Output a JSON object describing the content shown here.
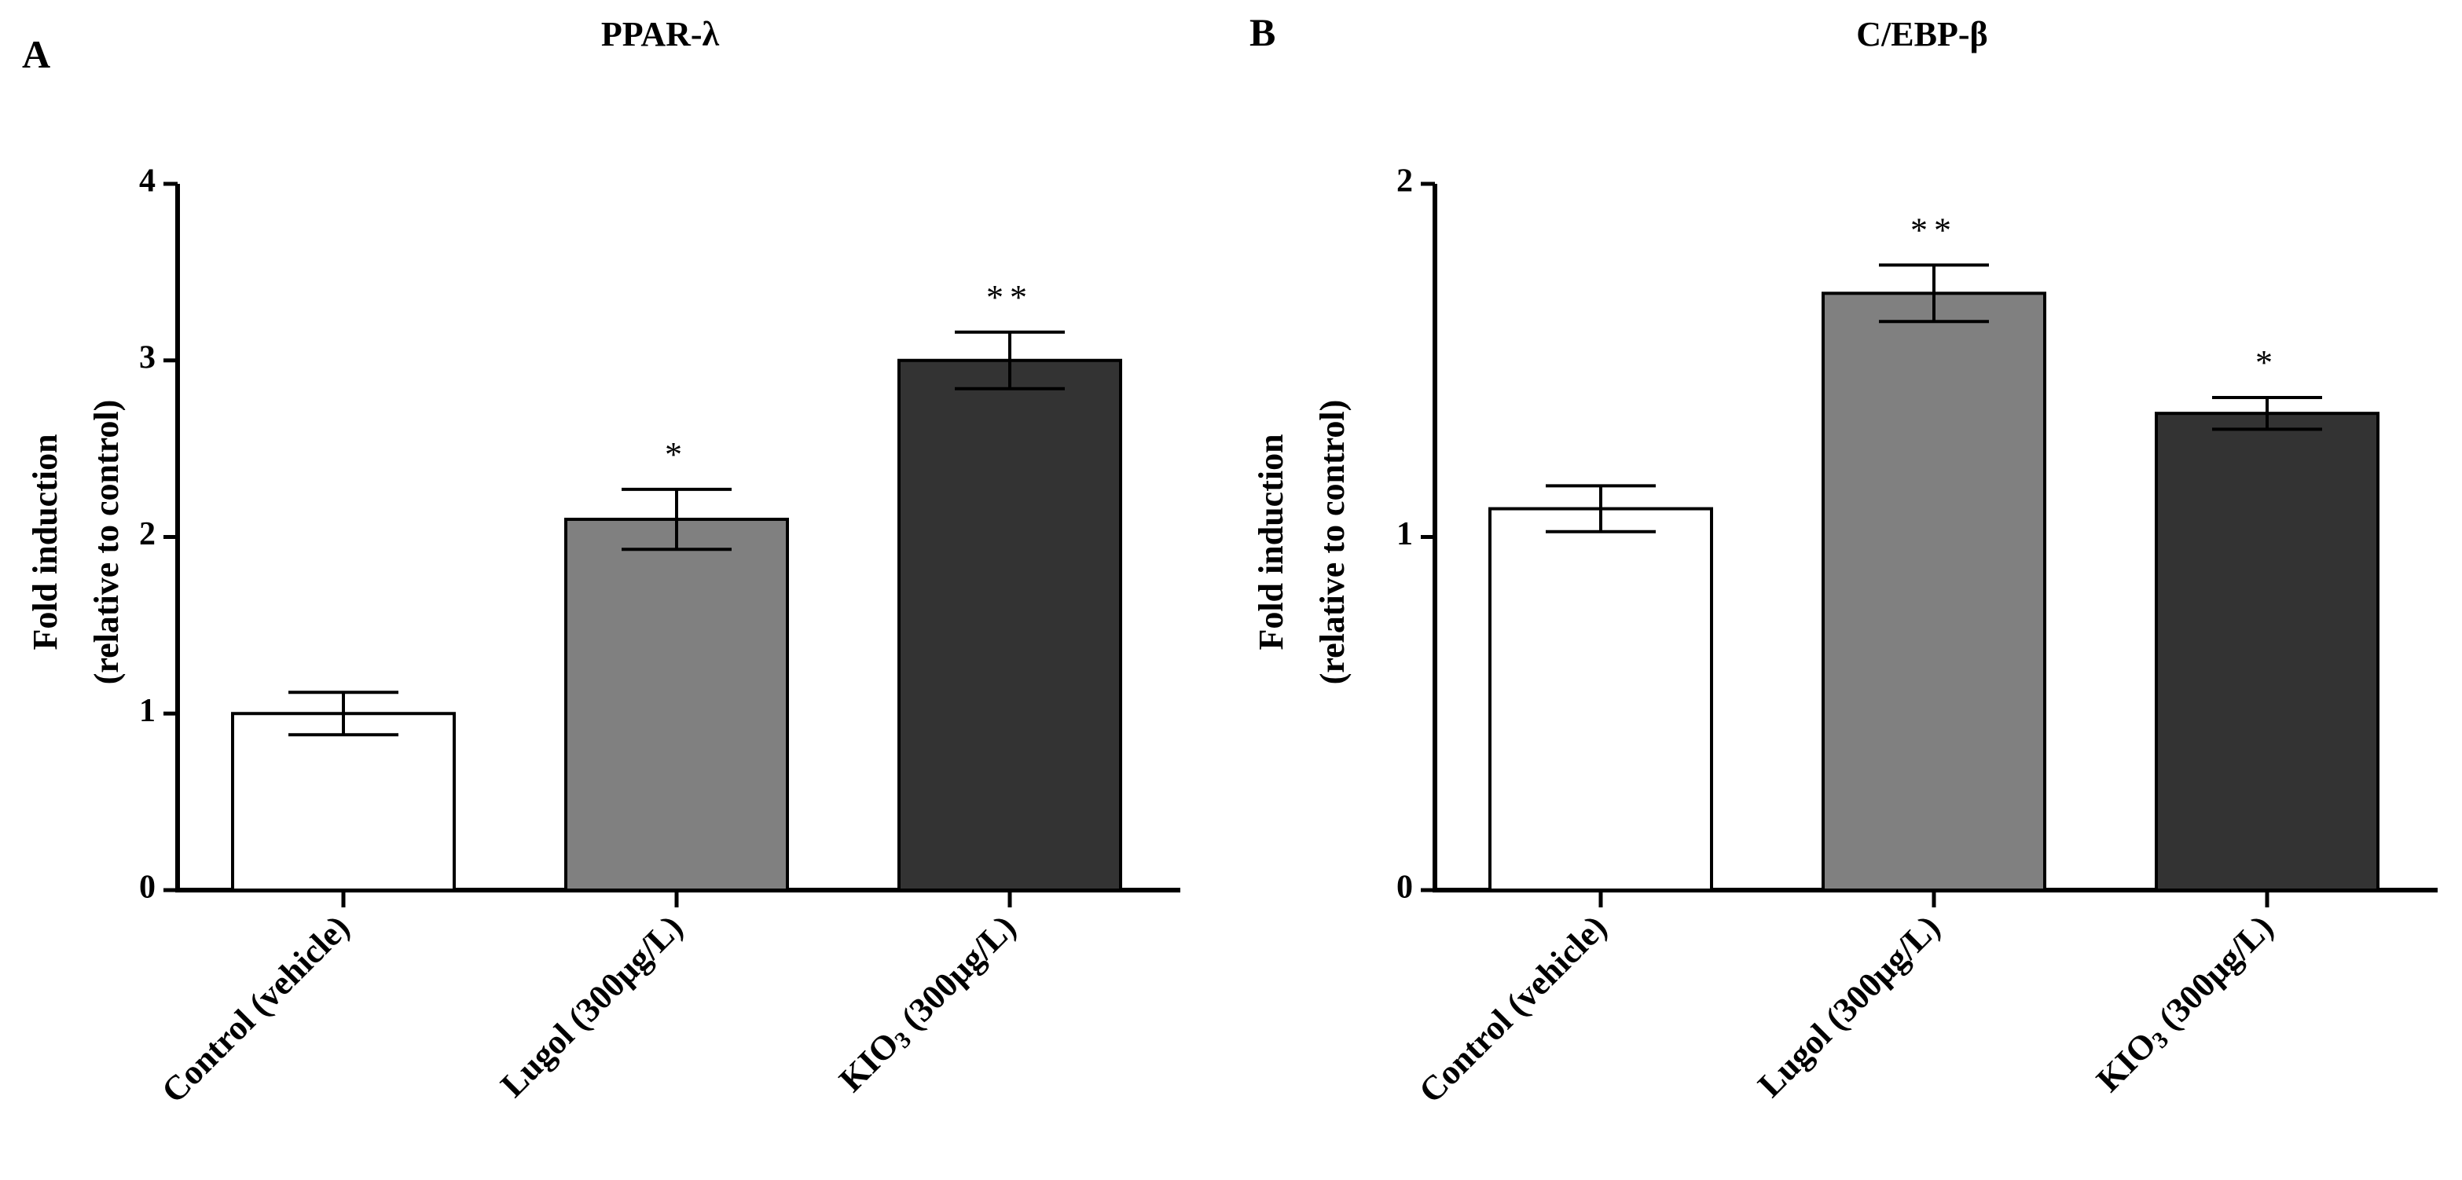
{
  "chart_data": [
    {
      "panel": "A",
      "type": "bar",
      "title": "PPAR-λ",
      "ylabel_line1": "Fold induction",
      "ylabel_line2": "(relative to control)",
      "xlabel": "",
      "ylim": [
        0,
        4
      ],
      "yticks": [
        0,
        1,
        2,
        3,
        4
      ],
      "categories": [
        "Control (vehicle)",
        "Lugol  (300µg/L)",
        "KIO3 (300µg/L)"
      ],
      "values": [
        1.0,
        2.1,
        3.0
      ],
      "errors": [
        0.12,
        0.17,
        0.16
      ],
      "significance": [
        "",
        "*",
        "**"
      ],
      "colors": [
        "#ffffff",
        "#808080",
        "#333333"
      ]
    },
    {
      "panel": "B",
      "type": "bar",
      "title": "C/EBP-β",
      "ylabel_line1": "Fold induction",
      "ylabel_line2": "(relative to control)",
      "xlabel": "",
      "ylim": [
        0,
        2
      ],
      "yticks": [
        0,
        1,
        2
      ],
      "categories": [
        "Control (vehicle)",
        "Lugol  (300µg/L)",
        "KIO3 (300µg/L)"
      ],
      "values": [
        1.08,
        1.69,
        1.35
      ],
      "errors": [
        0.065,
        0.08,
        0.045
      ],
      "significance": [
        "",
        "**",
        "*"
      ],
      "colors": [
        "#ffffff",
        "#808080",
        "#333333"
      ]
    }
  ]
}
